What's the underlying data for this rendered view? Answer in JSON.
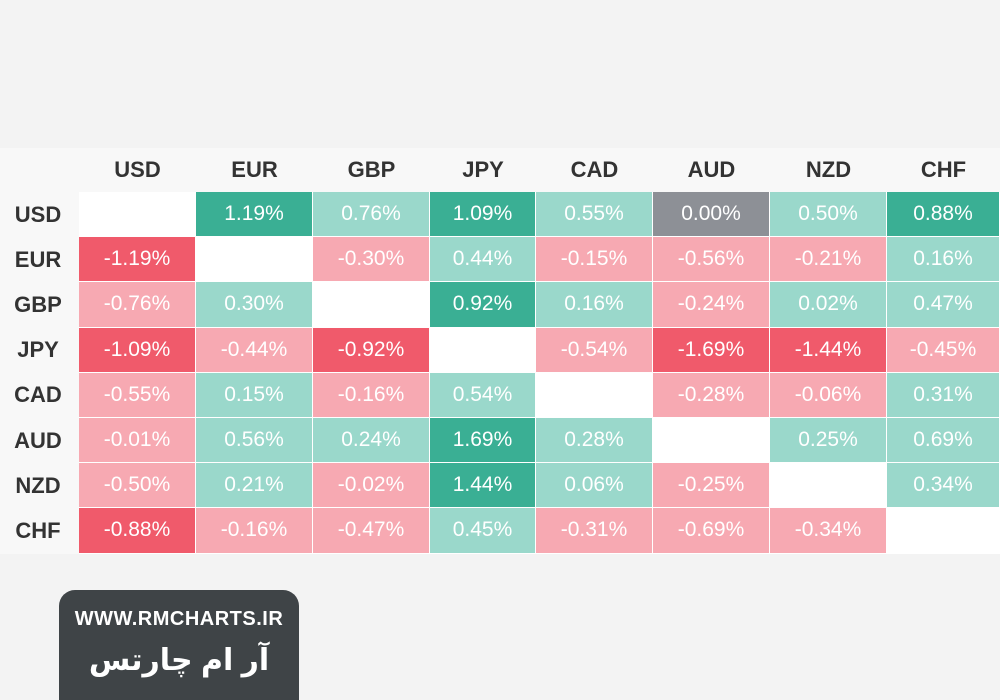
{
  "chart_data": {
    "type": "heatmap",
    "title": "",
    "columns": [
      "USD",
      "EUR",
      "GBP",
      "JPY",
      "CAD",
      "AUD",
      "NZD",
      "CHF"
    ],
    "rows": [
      "USD",
      "EUR",
      "GBP",
      "JPY",
      "CAD",
      "AUD",
      "NZD",
      "CHF"
    ],
    "cells": [
      [
        null,
        "1.19%",
        "0.76%",
        "1.09%",
        "0.55%",
        "0.00%",
        "0.50%",
        "0.88%"
      ],
      [
        "-1.19%",
        null,
        "-0.30%",
        "0.44%",
        "-0.15%",
        "-0.56%",
        "-0.21%",
        "0.16%"
      ],
      [
        "-0.76%",
        "0.30%",
        null,
        "0.92%",
        "0.16%",
        "-0.24%",
        "0.02%",
        "0.47%"
      ],
      [
        "-1.09%",
        "-0.44%",
        "-0.92%",
        null,
        "-0.54%",
        "-1.69%",
        "-1.44%",
        "-0.45%"
      ],
      [
        "-0.55%",
        "0.15%",
        "-0.16%",
        "0.54%",
        null,
        "-0.28%",
        "-0.06%",
        "0.31%"
      ],
      [
        "-0.01%",
        "0.56%",
        "0.24%",
        "1.69%",
        "0.28%",
        null,
        "0.25%",
        "0.69%"
      ],
      [
        "-0.50%",
        "0.21%",
        "-0.02%",
        "1.44%",
        "0.06%",
        "-0.25%",
        null,
        "0.34%"
      ],
      [
        "-0.88%",
        "-0.16%",
        "-0.47%",
        "0.45%",
        "-0.31%",
        "-0.69%",
        "-0.34%",
        null
      ]
    ],
    "values": [
      [
        null,
        1.19,
        0.76,
        1.09,
        0.55,
        0.0,
        0.5,
        0.88
      ],
      [
        -1.19,
        null,
        -0.3,
        0.44,
        -0.15,
        -0.56,
        -0.21,
        0.16
      ],
      [
        -0.76,
        0.3,
        null,
        0.92,
        0.16,
        -0.24,
        0.02,
        0.47
      ],
      [
        -1.09,
        -0.44,
        -0.92,
        null,
        -0.54,
        -1.69,
        -1.44,
        -0.45
      ],
      [
        -0.55,
        0.15,
        -0.16,
        0.54,
        null,
        -0.28,
        -0.06,
        0.31
      ],
      [
        -0.01,
        0.56,
        0.24,
        1.69,
        0.28,
        null,
        0.25,
        0.69
      ],
      [
        -0.5,
        0.21,
        -0.02,
        1.44,
        0.06,
        -0.25,
        null,
        0.34
      ],
      [
        -0.88,
        -0.16,
        -0.47,
        0.45,
        -0.31,
        -0.69,
        -0.34,
        null
      ]
    ],
    "colors": {
      "strong_positive": "#3aaf94",
      "mild_positive": "#9ad8cb",
      "strong_negative": "#f05a6b",
      "mild_negative": "#f7a9b2",
      "neutral": "#8d9096",
      "diagonal": "#ffffff"
    }
  },
  "brand": {
    "url": "WWW.RMCHARTS.IR",
    "name_fa": "آر ام چارتس"
  }
}
